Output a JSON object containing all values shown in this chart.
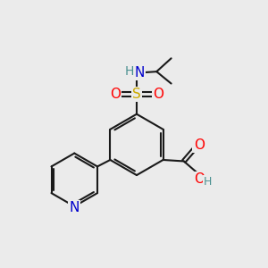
{
  "background_color": "#ebebeb",
  "atom_colors": {
    "C": "#000000",
    "N": "#0000cc",
    "O": "#ff0000",
    "S": "#ccaa00",
    "H": "#4a9090"
  },
  "bond_color": "#1a1a1a",
  "bond_width": 1.5,
  "figsize": [
    3.0,
    3.0
  ],
  "dpi": 100
}
